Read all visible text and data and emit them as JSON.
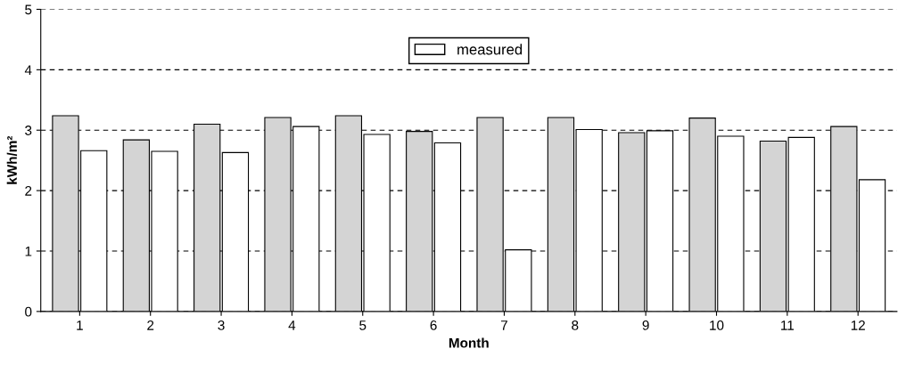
{
  "chart_data": {
    "type": "bar",
    "xlabel": "Month",
    "ylabel": "kWh/m²",
    "categories": [
      "1",
      "2",
      "3",
      "4",
      "5",
      "6",
      "7",
      "8",
      "9",
      "10",
      "11",
      "12"
    ],
    "series": [
      {
        "color": "#d4d4d4",
        "values": [
          3.24,
          2.84,
          3.1,
          3.21,
          3.24,
          2.98,
          3.21,
          3.21,
          2.96,
          3.2,
          2.82,
          3.06
        ]
      },
      {
        "name": "measured",
        "color": "#ffffff",
        "values": [
          2.66,
          2.65,
          2.63,
          3.06,
          2.93,
          2.79,
          1.02,
          3.01,
          2.99,
          2.9,
          2.88,
          2.18
        ]
      }
    ],
    "ylim": [
      0,
      5
    ],
    "yticks": [
      0,
      1,
      2,
      3,
      4,
      5
    ],
    "grid": "y",
    "legend": "top"
  }
}
